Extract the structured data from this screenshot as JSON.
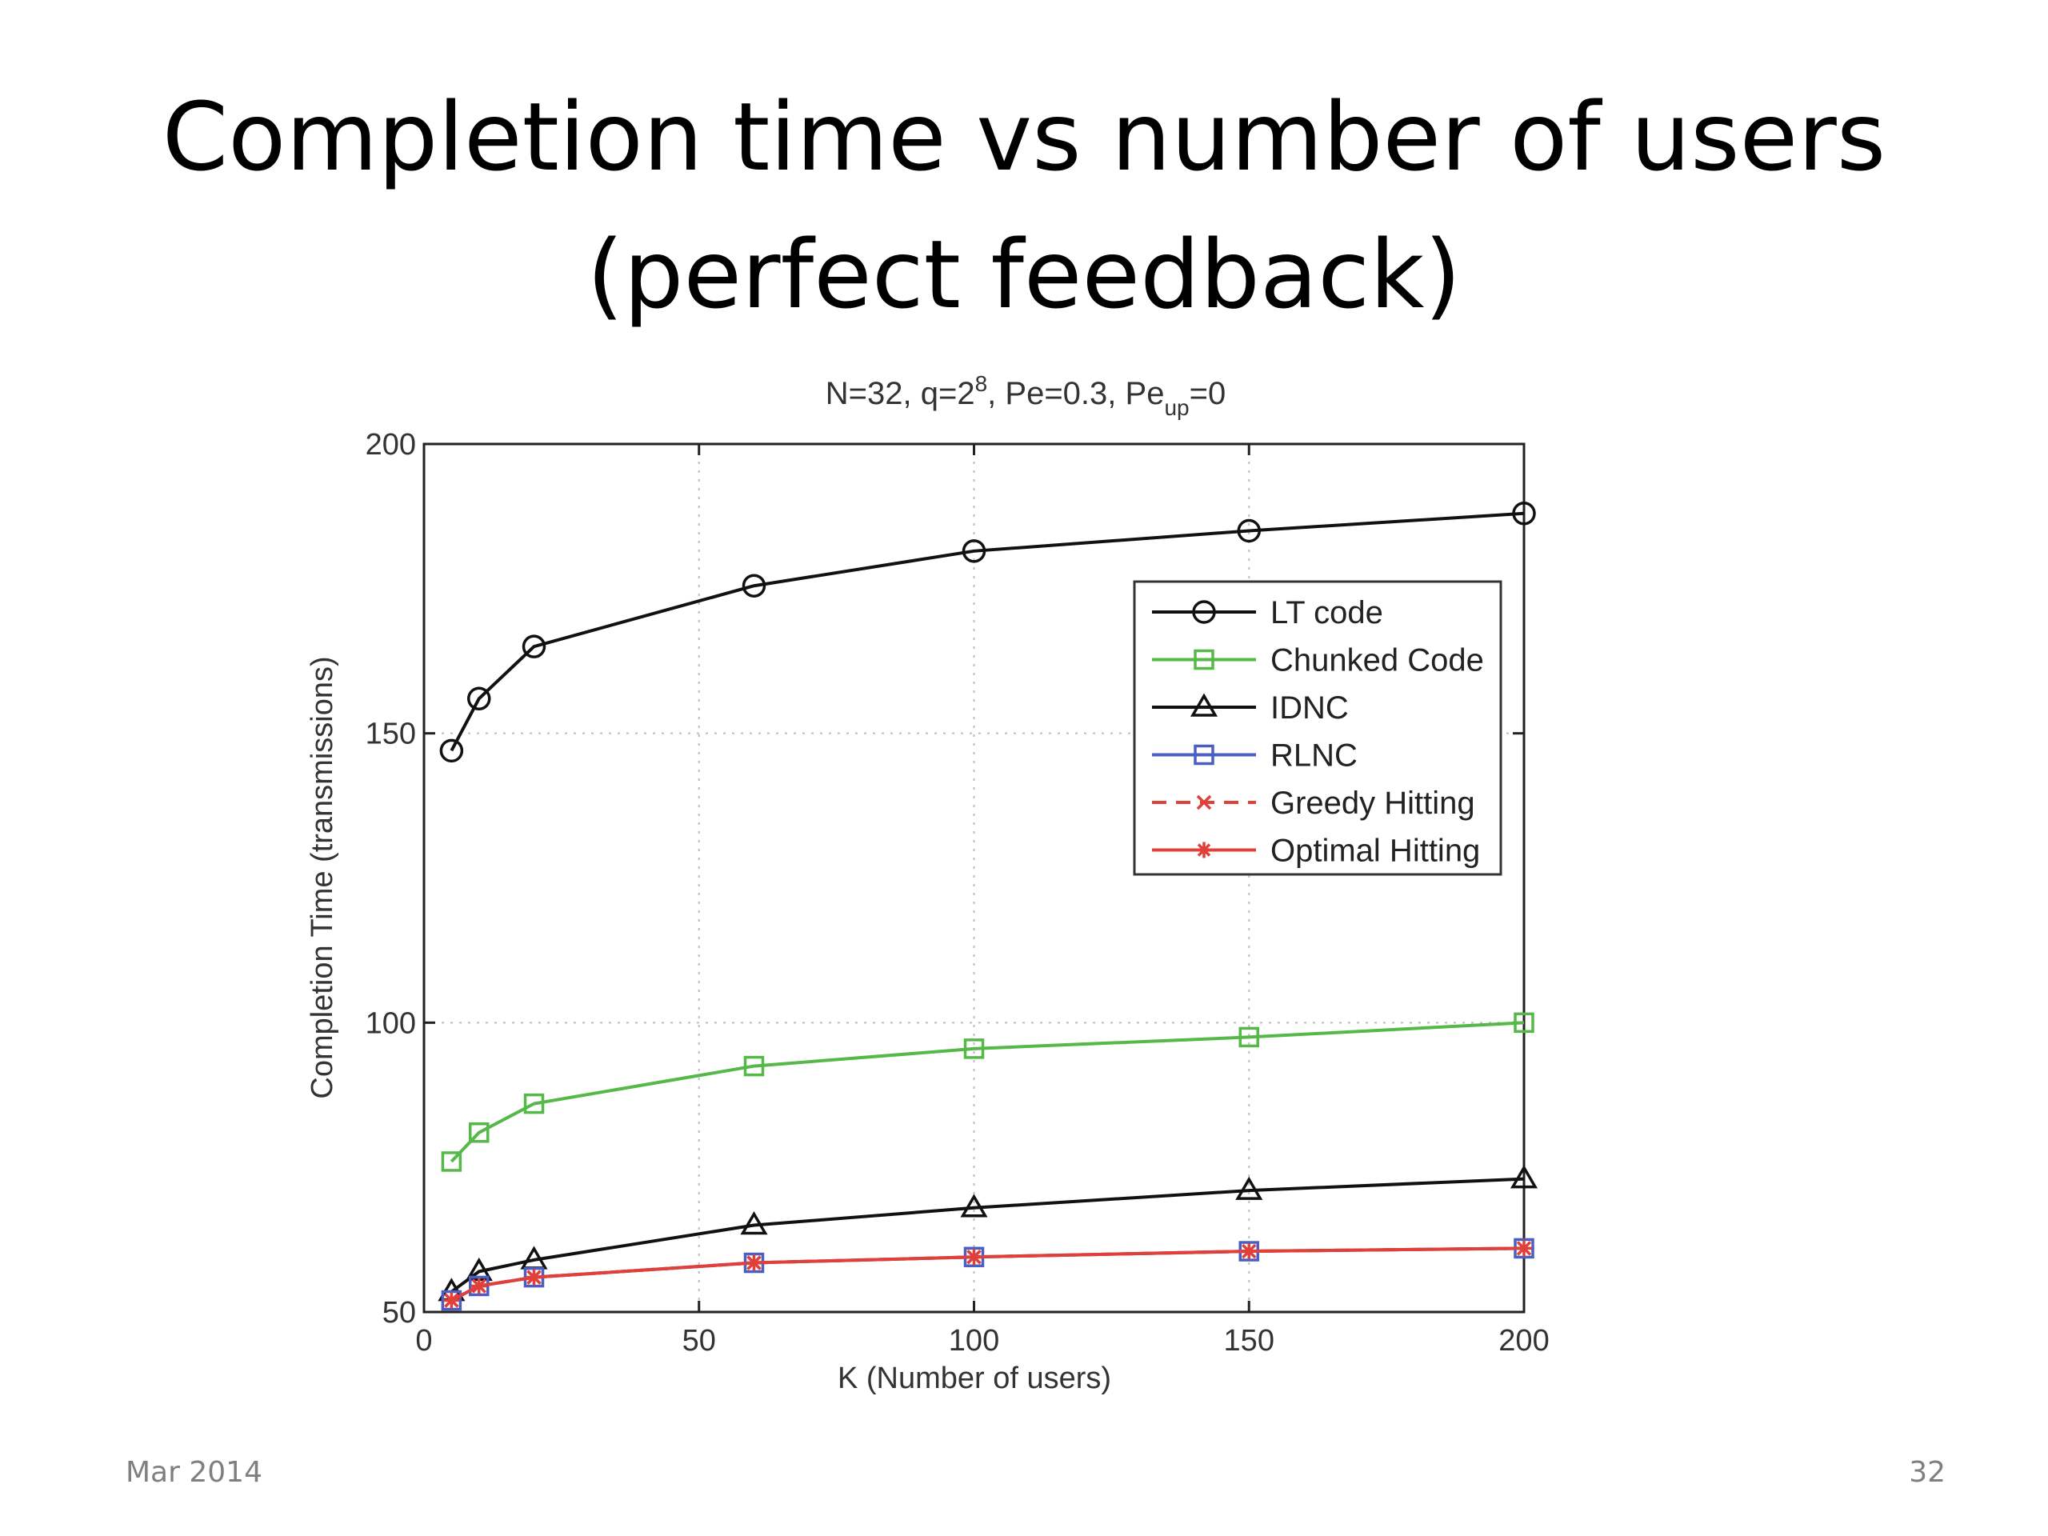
{
  "slide": {
    "title_line1": "Completion time vs number of users",
    "title_line2": "(perfect feedback)",
    "footer_date": "Mar 2014",
    "page_number": "32"
  },
  "chart_data": {
    "type": "line",
    "title": "N=32, q=2^8, Pe=0.3, Pe_up=0",
    "title_parts": {
      "a": "N=32, q=2",
      "sup": "8",
      "b": ", Pe=0.3, Pe",
      "sub": "up",
      "c": "=0"
    },
    "xlabel": "K (Number of users)",
    "ylabel": "Completion Time (transmissions)",
    "xlim": [
      0,
      200
    ],
    "ylim": [
      50,
      200
    ],
    "xticks": [
      0,
      50,
      100,
      150,
      200
    ],
    "yticks": [
      50,
      100,
      150,
      200
    ],
    "grid": true,
    "legend_position": "upper-right",
    "x": [
      5,
      10,
      20,
      60,
      100,
      150,
      200
    ],
    "series": [
      {
        "name": "LT code",
        "values": [
          147,
          156,
          165,
          175.5,
          181.5,
          185,
          188
        ],
        "color": "#111111",
        "marker": "circle",
        "dash": "solid"
      },
      {
        "name": "Chunked Code",
        "values": [
          76,
          81,
          86,
          92.5,
          95.5,
          97.5,
          100
        ],
        "color": "#55b848",
        "marker": "square",
        "dash": "solid"
      },
      {
        "name": "IDNC",
        "values": [
          53.5,
          57,
          59,
          65,
          68,
          71,
          73
        ],
        "color": "#111111",
        "marker": "triangle",
        "dash": "solid"
      },
      {
        "name": "RLNC",
        "values": [
          52,
          54.5,
          56,
          58.5,
          59.5,
          60.5,
          61
        ],
        "color": "#4a5fc1",
        "marker": "square",
        "dash": "solid"
      },
      {
        "name": "Greedy Hitting",
        "values": [
          52,
          54.5,
          56,
          58.5,
          59.5,
          60.5,
          61
        ],
        "color": "#e0403a",
        "marker": "x",
        "dash": "dashed"
      },
      {
        "name": "Optimal Hitting",
        "values": [
          52,
          54.5,
          56,
          58.5,
          59.5,
          60.5,
          61
        ],
        "color": "#e0403a",
        "marker": "star",
        "dash": "solid"
      }
    ]
  }
}
